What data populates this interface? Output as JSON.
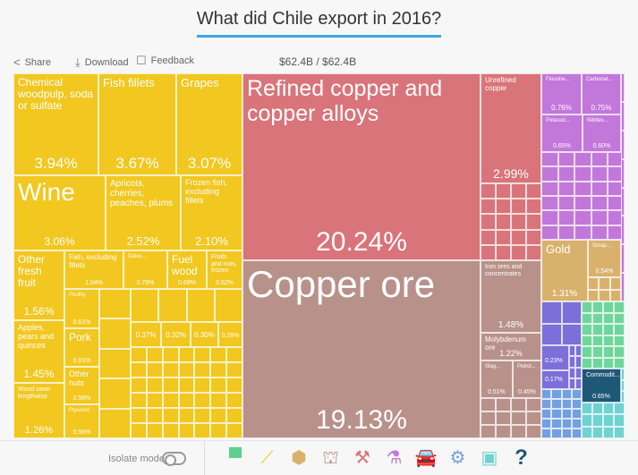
{
  "title": "What did Chile export in 2016?",
  "toolbar": {
    "share": "Share",
    "download": "Download",
    "feedback": "Feedback",
    "total": "$62.4B / $62.4B"
  },
  "tiles": [
    {
      "label": "Chemical woodpulp, soda or sulfate",
      "value": "3.94%"
    },
    {
      "label": "Fish fillets",
      "value": "3.67%"
    },
    {
      "label": "Grapes",
      "value": "3.07%"
    },
    {
      "label": "Wine",
      "value": "3.06%"
    },
    {
      "label": "Apricots, cherries, peaches, plums",
      "value": "2.52%"
    },
    {
      "label": "Frozen fish, excluding fillets",
      "value": "2.10%"
    },
    {
      "label": "Other fresh fruit",
      "value": "1.56%"
    },
    {
      "label": "Fish, excluding fillets",
      "value": "1.04%"
    },
    {
      "label": "Dates...",
      "value": "0.76%"
    },
    {
      "label": "Fuel wood",
      "value": "0.69%"
    },
    {
      "label": "Fruits and nuts, frozen",
      "value": "0.62%"
    },
    {
      "label": "Apples, pears and quinces",
      "value": "1.45%"
    },
    {
      "label": "Wood sawn lengthwise",
      "value": "1.26%"
    },
    {
      "label": "Poultry",
      "value": "0.61%"
    },
    {
      "label": "Pork",
      "value": "0.61%"
    },
    {
      "label": "Other nuts",
      "value": "0.56%"
    },
    {
      "label": "Plywood",
      "value": "0.56%"
    },
    {
      "label": "",
      "value": "0.37%"
    },
    {
      "label": "",
      "value": "0.32%"
    },
    {
      "label": "",
      "value": "0.30%"
    },
    {
      "label": "",
      "value": "0.28%"
    },
    {
      "label": "Refined copper and copper alloys",
      "value": "20.24%"
    },
    {
      "label": "Copper ore",
      "value": "19.13%"
    },
    {
      "label": "Unrefined copper",
      "value": "2.99%"
    },
    {
      "label": "Iron ores and concentrates",
      "value": "1.48%"
    },
    {
      "label": "Molybdenum ore",
      "value": "1.22%"
    },
    {
      "label": "Slag...",
      "value": "0.51%"
    },
    {
      "label": "Petrol...",
      "value": "0.45%"
    },
    {
      "label": "Flourine...",
      "value": "0.76%"
    },
    {
      "label": "Carbonat...",
      "value": "0.75%"
    },
    {
      "label": "Potassic...",
      "value": "0.65%"
    },
    {
      "label": "Nitrites...",
      "value": "0.60%"
    },
    {
      "label": "Gold",
      "value": "1.31%"
    },
    {
      "label": "Scrap...",
      "value": "0.54%"
    },
    {
      "label": "",
      "value": "0.23%"
    },
    {
      "label": "",
      "value": "0.17%"
    },
    {
      "label": "Commodit...",
      "value": "0.65%"
    }
  ],
  "footer": {
    "isolate_label": "Isolate mode",
    "isolate_on": false,
    "icons": [
      {
        "name": "textiles-icon",
        "glyph": "▀",
        "color": "#5fcf8f"
      },
      {
        "name": "vegetable-products-icon",
        "glyph": "⟋",
        "color": "#f2c71f"
      },
      {
        "name": "precious-stones-icon",
        "glyph": "⬢",
        "color": "#d8b26c"
      },
      {
        "name": "mineral-fuels-icon",
        "glyph": "⛫",
        "color": "#b8918a"
      },
      {
        "name": "minerals-icon",
        "glyph": "⚒",
        "color": "#d9747a"
      },
      {
        "name": "chemicals-icon",
        "glyph": "⚗",
        "color": "#c277da"
      },
      {
        "name": "transportation-icon",
        "glyph": "🚘",
        "color": "#7d6fd9"
      },
      {
        "name": "machines-icon",
        "glyph": "⚙",
        "color": "#72a0e1"
      },
      {
        "name": "electronics-icon",
        "glyph": "▣",
        "color": "#6ed3d2"
      },
      {
        "name": "unknown-icon",
        "glyph": "?",
        "color": "#1e5877"
      }
    ]
  }
}
